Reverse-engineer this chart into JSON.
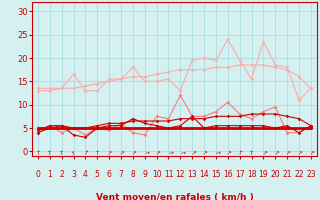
{
  "background_color": "#d4f0f0",
  "grid_color": "#aadddd",
  "x_values": [
    0,
    1,
    2,
    3,
    4,
    5,
    6,
    7,
    8,
    9,
    10,
    11,
    12,
    13,
    14,
    15,
    16,
    17,
    18,
    19,
    20,
    21,
    22,
    23
  ],
  "series": [
    {
      "color": "#ffaaaa",
      "alpha": 1.0,
      "lw": 0.8,
      "marker": "D",
      "ms": 1.8,
      "values": [
        13.0,
        13.0,
        13.5,
        16.5,
        13.0,
        13.0,
        15.5,
        15.5,
        18.0,
        15.0,
        15.0,
        15.5,
        13.0,
        19.5,
        20.0,
        19.5,
        24.0,
        19.5,
        15.5,
        23.5,
        18.5,
        18.0,
        11.0,
        13.5
      ]
    },
    {
      "color": "#ffaaaa",
      "alpha": 1.0,
      "lw": 0.8,
      "marker": "D",
      "ms": 1.8,
      "values": [
        13.5,
        13.5,
        13.5,
        13.5,
        14.0,
        14.5,
        15.0,
        15.5,
        16.0,
        16.0,
        16.5,
        17.0,
        17.5,
        17.5,
        17.5,
        18.0,
        18.0,
        18.5,
        18.5,
        18.5,
        18.0,
        17.5,
        16.0,
        13.5
      ]
    },
    {
      "color": "#ff7777",
      "alpha": 1.0,
      "lw": 0.8,
      "marker": "D",
      "ms": 1.8,
      "values": [
        4.0,
        5.5,
        4.0,
        5.0,
        3.5,
        5.0,
        4.5,
        6.0,
        4.0,
        3.5,
        7.5,
        7.0,
        12.0,
        7.5,
        7.5,
        8.5,
        10.5,
        8.0,
        7.0,
        8.5,
        9.5,
        4.0,
        4.0,
        5.5
      ]
    },
    {
      "color": "#cc0000",
      "alpha": 1.0,
      "lw": 0.8,
      "marker": "D",
      "ms": 1.8,
      "values": [
        4.5,
        5.5,
        5.5,
        3.5,
        3.0,
        5.0,
        5.5,
        5.5,
        7.0,
        6.0,
        5.5,
        5.0,
        5.5,
        7.5,
        5.0,
        5.5,
        5.5,
        5.5,
        5.5,
        5.5,
        5.0,
        5.5,
        4.0,
        5.5
      ]
    },
    {
      "color": "#cc0000",
      "alpha": 1.0,
      "lw": 2.0,
      "marker": null,
      "ms": 0,
      "values": [
        5.0,
        5.0,
        5.0,
        5.0,
        5.0,
        5.0,
        5.0,
        5.0,
        5.0,
        5.0,
        5.0,
        5.0,
        5.0,
        5.0,
        5.0,
        5.0,
        5.0,
        5.0,
        5.0,
        5.0,
        5.0,
        5.0,
        5.0,
        5.0
      ]
    },
    {
      "color": "#cc0000",
      "alpha": 1.0,
      "lw": 0.8,
      "marker": "D",
      "ms": 1.8,
      "values": [
        4.0,
        5.0,
        5.5,
        5.0,
        5.0,
        5.5,
        6.0,
        6.0,
        6.5,
        6.5,
        6.5,
        6.5,
        7.0,
        7.0,
        7.0,
        7.5,
        7.5,
        7.5,
        8.0,
        8.0,
        8.0,
        7.5,
        7.0,
        5.5
      ]
    }
  ],
  "xlabel": "Vent moyen/en rafales ( km/h )",
  "xlabel_color": "#cc0000",
  "xlabel_fontsize": 6.5,
  "xtick_fontsize": 5.5,
  "ytick_fontsize": 6.0,
  "ylim": [
    -1,
    32
  ],
  "xlim": [
    -0.5,
    23.5
  ],
  "yticks": [
    0,
    5,
    10,
    15,
    20,
    25,
    30
  ],
  "xticks": [
    0,
    1,
    2,
    3,
    4,
    5,
    6,
    7,
    8,
    9,
    10,
    11,
    12,
    13,
    14,
    15,
    16,
    17,
    18,
    19,
    20,
    21,
    22,
    23
  ],
  "tick_color": "#cc0000",
  "axis_color": "#cc0000",
  "arrow_angles": [
    0,
    0,
    0,
    -20,
    20,
    0,
    30,
    45,
    45,
    80,
    45,
    80,
    80,
    45,
    45,
    80,
    45,
    20,
    0,
    45,
    45,
    45,
    45,
    45
  ]
}
